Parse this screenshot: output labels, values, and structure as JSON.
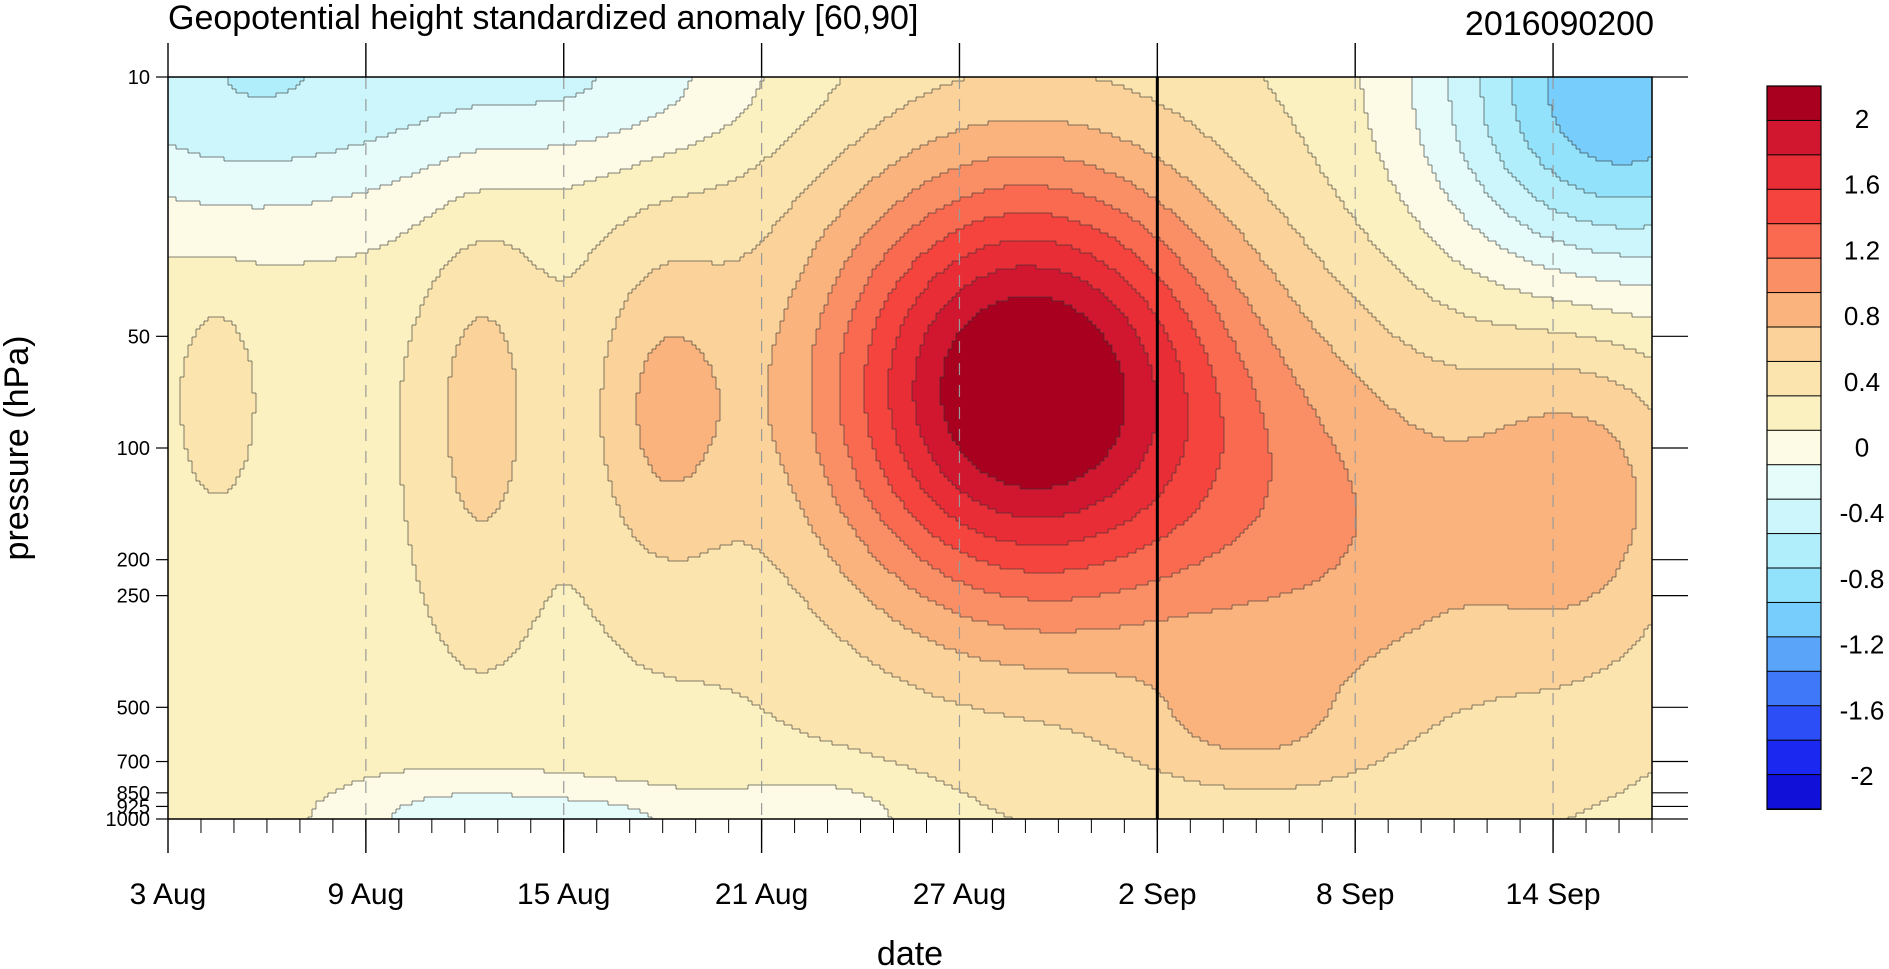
{
  "chart_data": {
    "type": "heatmap",
    "title": "Geopotential height standardized anomaly [60,90]",
    "subtitle": "2016090200",
    "xlabel": "date",
    "ylabel": "pressure (hPa)",
    "y_scale": "log",
    "y_ticks": [
      10,
      50,
      100,
      200,
      250,
      500,
      700,
      850,
      925,
      1000
    ],
    "y_range": [
      10,
      1000
    ],
    "x_start": "2016-08-03",
    "x_end": "2016-09-17",
    "x_tick_labels": [
      "3 Aug",
      "9 Aug",
      "15 Aug",
      "21 Aug",
      "27 Aug",
      "2 Sep",
      "8 Sep",
      "14 Sep"
    ],
    "x_tick_dates": [
      "2016-08-03",
      "2016-08-09",
      "2016-08-15",
      "2016-08-21",
      "2016-08-27",
      "2016-09-02",
      "2016-09-08",
      "2016-09-14"
    ],
    "marker_date": "2016-09-02",
    "levels": [
      -2.2,
      -2.0,
      -1.8,
      -1.6,
      -1.4,
      -1.2,
      -1.0,
      -0.8,
      -0.6,
      -0.4,
      -0.2,
      0,
      0.2,
      0.4,
      0.6,
      0.8,
      1.0,
      1.2,
      1.4,
      1.6,
      1.8,
      2.0,
      2.2
    ],
    "colors": [
      "#1010d8",
      "#1a28f0",
      "#2b4ef7",
      "#3f78f8",
      "#5aa4fa",
      "#77cdfb",
      "#93e2fb",
      "#b0eefb",
      "#ccf6fb",
      "#e6fcfb",
      "#fdfbe6",
      "#fbf0c0",
      "#fbe4ad",
      "#fbd39a",
      "#fbb37e",
      "#fa8f66",
      "#f96a50",
      "#f5443e",
      "#e82d37",
      "#d11630",
      "#a8001e"
    ],
    "colorbar_labels": [
      "2",
      "1.6",
      "1.2",
      "0.8",
      "0.4",
      "0",
      "-0.4",
      "-0.8",
      "-1.2",
      "-1.6",
      "-2"
    ],
    "colorbar_label_values": [
      2,
      1.6,
      1.2,
      0.8,
      0.4,
      0,
      -0.4,
      -0.8,
      -1.2,
      -1.6,
      -2
    ]
  }
}
